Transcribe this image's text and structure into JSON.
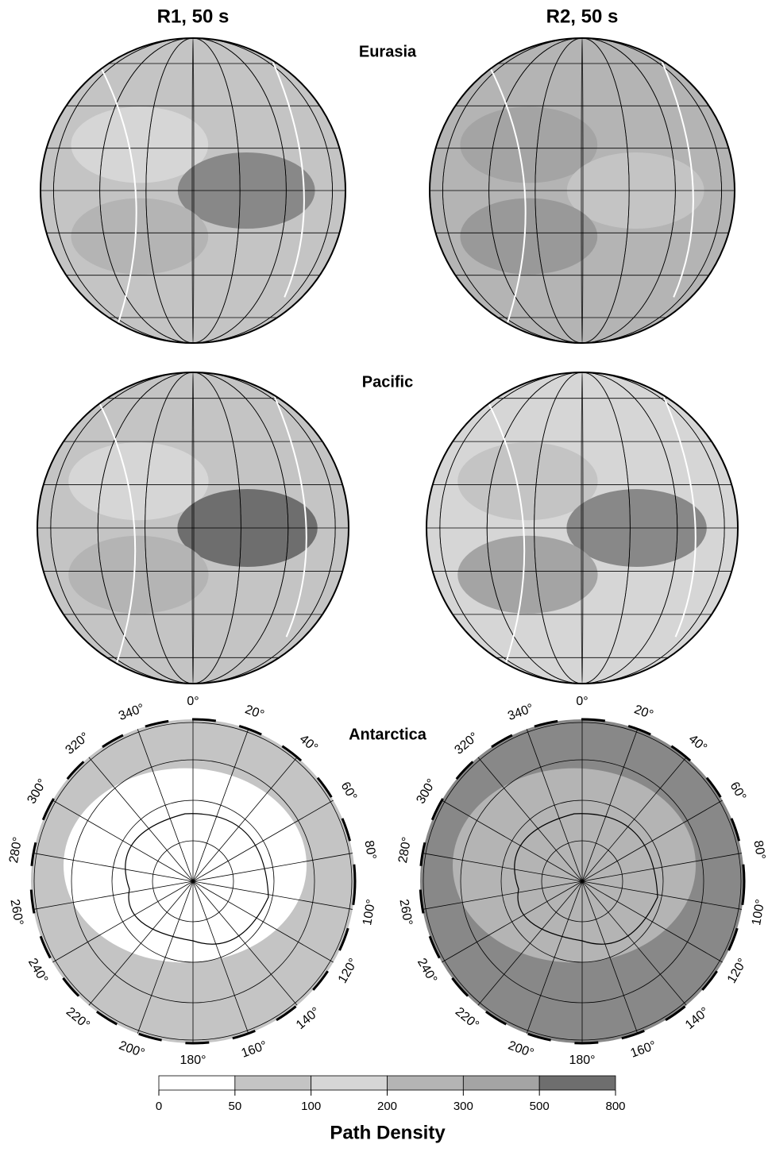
{
  "columns": [
    "R1, 50 s",
    "R2, 50 s"
  ],
  "regions": [
    "Eurasia",
    "Pacific",
    "Antarctica"
  ],
  "polar_labels": [
    "0°",
    "20°",
    "40°",
    "60°",
    "80°",
    "100°",
    "120°",
    "140°",
    "160°",
    "180°",
    "200°",
    "220°",
    "240°",
    "260°",
    "280°",
    "300°",
    "320°",
    "340°"
  ],
  "colorbar": {
    "label": "Path Density",
    "ticks": [
      0,
      50,
      100,
      200,
      300,
      500,
      800
    ],
    "colors": [
      "#ffffff",
      "#c4c4c4",
      "#d6d6d6",
      "#b4b4b4",
      "#a4a4a4",
      "#6e6e6e"
    ]
  }
}
